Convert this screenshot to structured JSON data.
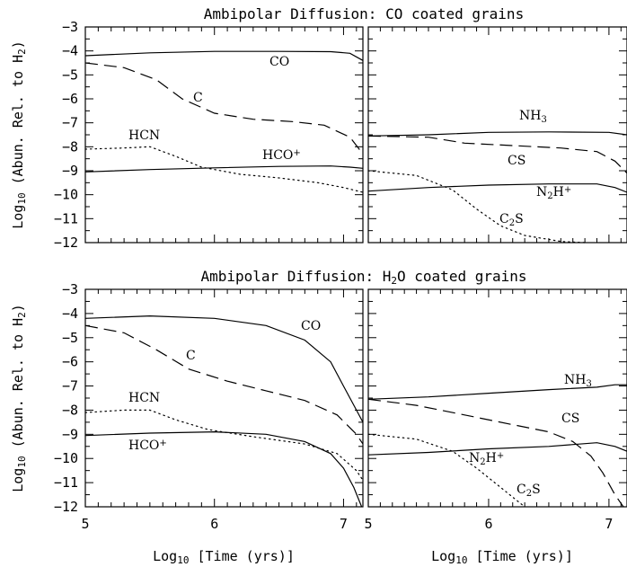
{
  "figure": {
    "xlabel": "Log10 [Time (yrs)]",
    "ylabel": "Log10 (Abun. Rel. to H2)"
  },
  "chart_data": [
    {
      "type": "line",
      "panel": "top-left",
      "title": "Ambipolar Diffusion: CO coated grains",
      "xlim": [
        5.0,
        7.15
      ],
      "ylim": [
        -12,
        -3
      ],
      "xticks": [
        5,
        6,
        7
      ],
      "yticks": [
        -3,
        -4,
        -5,
        -6,
        -7,
        -8,
        -9,
        -10,
        -11,
        -12
      ],
      "series": [
        {
          "name": "CO",
          "style": "solid",
          "points": [
            [
              5.0,
              -4.2
            ],
            [
              5.5,
              -4.08
            ],
            [
              6.0,
              -4.02
            ],
            [
              6.5,
              -4.02
            ],
            [
              6.9,
              -4.03
            ],
            [
              7.05,
              -4.1
            ],
            [
              7.15,
              -4.4
            ]
          ]
        },
        {
          "name": "C",
          "style": "dashed",
          "points": [
            [
              5.0,
              -4.5
            ],
            [
              5.3,
              -4.7
            ],
            [
              5.55,
              -5.2
            ],
            [
              5.75,
              -6.0
            ],
            [
              6.0,
              -6.6
            ],
            [
              6.3,
              -6.85
            ],
            [
              6.6,
              -6.95
            ],
            [
              6.85,
              -7.1
            ],
            [
              7.05,
              -7.6
            ],
            [
              7.15,
              -8.3
            ]
          ]
        },
        {
          "name": "HCN",
          "style": "dotted",
          "points": [
            [
              5.0,
              -8.1
            ],
            [
              5.3,
              -8.05
            ],
            [
              5.5,
              -8.0
            ],
            [
              5.7,
              -8.4
            ],
            [
              5.9,
              -8.85
            ],
            [
              6.2,
              -9.15
            ],
            [
              6.5,
              -9.3
            ],
            [
              6.8,
              -9.5
            ],
            [
              7.0,
              -9.7
            ],
            [
              7.15,
              -9.9
            ]
          ]
        },
        {
          "name": "HCO+",
          "style": "solid",
          "points": [
            [
              5.0,
              -9.05
            ],
            [
              5.5,
              -8.95
            ],
            [
              6.0,
              -8.88
            ],
            [
              6.5,
              -8.82
            ],
            [
              6.9,
              -8.8
            ],
            [
              7.05,
              -8.85
            ],
            [
              7.15,
              -8.9
            ]
          ]
        }
      ]
    },
    {
      "type": "line",
      "panel": "top-right",
      "xlim": [
        5.0,
        7.15
      ],
      "ylim": [
        -12,
        -3
      ],
      "xticks": [
        5,
        6,
        7
      ],
      "series": [
        {
          "name": "NH3",
          "style": "solid",
          "points": [
            [
              5.0,
              -7.55
            ],
            [
              5.5,
              -7.5
            ],
            [
              6.0,
              -7.4
            ],
            [
              6.5,
              -7.38
            ],
            [
              7.0,
              -7.4
            ],
            [
              7.15,
              -7.5
            ]
          ]
        },
        {
          "name": "CS",
          "style": "dashed",
          "points": [
            [
              5.0,
              -7.55
            ],
            [
              5.5,
              -7.6
            ],
            [
              5.8,
              -7.85
            ],
            [
              6.2,
              -7.95
            ],
            [
              6.6,
              -8.05
            ],
            [
              6.9,
              -8.2
            ],
            [
              7.05,
              -8.6
            ],
            [
              7.15,
              -9.1
            ]
          ]
        },
        {
          "name": "N2H+",
          "style": "solid",
          "points": [
            [
              5.0,
              -9.85
            ],
            [
              5.5,
              -9.7
            ],
            [
              6.0,
              -9.6
            ],
            [
              6.5,
              -9.55
            ],
            [
              6.9,
              -9.55
            ],
            [
              7.05,
              -9.7
            ],
            [
              7.15,
              -9.9
            ]
          ]
        },
        {
          "name": "C2S",
          "style": "dotted",
          "points": [
            [
              5.0,
              -9.0
            ],
            [
              5.4,
              -9.2
            ],
            [
              5.7,
              -9.8
            ],
            [
              5.9,
              -10.6
            ],
            [
              6.1,
              -11.3
            ],
            [
              6.3,
              -11.7
            ],
            [
              6.6,
              -11.95
            ],
            [
              6.8,
              -12.0
            ]
          ]
        }
      ]
    },
    {
      "type": "line",
      "panel": "bottom-left",
      "title": "Ambipolar Diffusion: H2O coated grains",
      "xlim": [
        5.0,
        7.15
      ],
      "ylim": [
        -12,
        -3
      ],
      "xticks": [
        5,
        6,
        7
      ],
      "yticks": [
        -3,
        -4,
        -5,
        -6,
        -7,
        -8,
        -9,
        -10,
        -11,
        -12
      ],
      "series": [
        {
          "name": "CO",
          "style": "solid",
          "points": [
            [
              5.0,
              -4.2
            ],
            [
              5.5,
              -4.1
            ],
            [
              6.0,
              -4.2
            ],
            [
              6.4,
              -4.5
            ],
            [
              6.7,
              -5.1
            ],
            [
              6.9,
              -6.0
            ],
            [
              7.0,
              -7.0
            ],
            [
              7.1,
              -8.0
            ],
            [
              7.15,
              -8.5
            ]
          ]
        },
        {
          "name": "C",
          "style": "dashed",
          "points": [
            [
              5.0,
              -4.5
            ],
            [
              5.3,
              -4.8
            ],
            [
              5.55,
              -5.5
            ],
            [
              5.8,
              -6.3
            ],
            [
              6.1,
              -6.8
            ],
            [
              6.4,
              -7.2
            ],
            [
              6.7,
              -7.6
            ],
            [
              6.95,
              -8.2
            ],
            [
              7.1,
              -9.0
            ],
            [
              7.15,
              -9.4
            ]
          ]
        },
        {
          "name": "HCN",
          "style": "dotted",
          "points": [
            [
              5.0,
              -8.1
            ],
            [
              5.3,
              -8.0
            ],
            [
              5.5,
              -8.0
            ],
            [
              5.7,
              -8.4
            ],
            [
              5.95,
              -8.8
            ],
            [
              6.3,
              -9.1
            ],
            [
              6.7,
              -9.4
            ],
            [
              6.95,
              -9.8
            ],
            [
              7.1,
              -10.5
            ],
            [
              7.15,
              -10.9
            ]
          ]
        },
        {
          "name": "HCO+",
          "style": "solid",
          "points": [
            [
              5.0,
              -9.05
            ],
            [
              5.5,
              -8.95
            ],
            [
              6.0,
              -8.9
            ],
            [
              6.4,
              -9.0
            ],
            [
              6.7,
              -9.3
            ],
            [
              6.9,
              -9.8
            ],
            [
              7.0,
              -10.4
            ],
            [
              7.08,
              -11.2
            ],
            [
              7.14,
              -12.0
            ]
          ]
        }
      ]
    },
    {
      "type": "line",
      "panel": "bottom-right",
      "xlim": [
        5.0,
        7.15
      ],
      "ylim": [
        -12,
        -3
      ],
      "xticks": [
        5,
        6,
        7
      ],
      "series": [
        {
          "name": "NH3",
          "style": "solid",
          "points": [
            [
              5.0,
              -7.55
            ],
            [
              5.5,
              -7.45
            ],
            [
              6.0,
              -7.3
            ],
            [
              6.5,
              -7.15
            ],
            [
              6.9,
              -7.05
            ],
            [
              7.05,
              -6.95
            ],
            [
              7.15,
              -6.95
            ]
          ]
        },
        {
          "name": "CS",
          "style": "dashed",
          "points": [
            [
              5.0,
              -7.55
            ],
            [
              5.4,
              -7.8
            ],
            [
              5.8,
              -8.2
            ],
            [
              6.2,
              -8.6
            ],
            [
              6.5,
              -8.9
            ],
            [
              6.7,
              -9.3
            ],
            [
              6.85,
              -9.9
            ],
            [
              6.95,
              -10.6
            ],
            [
              7.05,
              -11.5
            ],
            [
              7.12,
              -12.0
            ]
          ]
        },
        {
          "name": "N2H+",
          "style": "solid",
          "points": [
            [
              5.0,
              -9.85
            ],
            [
              5.5,
              -9.75
            ],
            [
              6.0,
              -9.6
            ],
            [
              6.5,
              -9.5
            ],
            [
              6.9,
              -9.35
            ],
            [
              7.05,
              -9.5
            ],
            [
              7.15,
              -9.7
            ]
          ]
        },
        {
          "name": "C2S",
          "style": "dotted",
          "points": [
            [
              5.0,
              -9.0
            ],
            [
              5.4,
              -9.2
            ],
            [
              5.7,
              -9.7
            ],
            [
              5.9,
              -10.4
            ],
            [
              6.05,
              -11.0
            ],
            [
              6.2,
              -11.6
            ],
            [
              6.3,
              -12.0
            ]
          ]
        }
      ]
    }
  ]
}
